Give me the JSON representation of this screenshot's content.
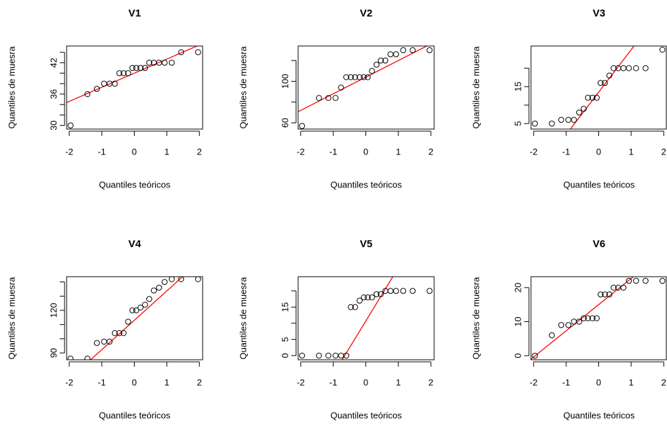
{
  "chart_data": [
    {
      "type": "qq",
      "title": "V1",
      "xlabel": "Quantiles teóricos",
      "ylabel": "Quantiles de muesra",
      "x": [
        -1.96,
        -1.44,
        -1.15,
        -0.93,
        -0.76,
        -0.6,
        -0.46,
        -0.33,
        -0.19,
        -0.06,
        0.06,
        0.19,
        0.33,
        0.46,
        0.6,
        0.76,
        0.93,
        1.15,
        1.44,
        1.96
      ],
      "values": [
        30,
        36,
        37,
        38,
        38,
        38,
        40,
        40,
        40,
        41,
        41,
        41,
        41,
        42,
        42,
        42,
        42,
        42,
        44,
        44
      ],
      "qqline": {
        "intercept": 40,
        "slope": 2.7,
        "color": "#ff0000"
      },
      "xlim": [
        -2.08,
        2.1
      ],
      "ylim": [
        29.3,
        45.2
      ],
      "xticks": [
        -2,
        -1,
        0,
        1,
        2
      ],
      "yticks": [
        30,
        36,
        42
      ],
      "yticks_unlabeled": [
        32,
        34,
        38,
        40,
        44
      ]
    },
    {
      "type": "qq",
      "title": "V2",
      "xlabel": "Quantiles teóricos",
      "ylabel": "Quantiles de muesra",
      "x": [
        -1.96,
        -1.44,
        -1.15,
        -0.93,
        -0.76,
        -0.6,
        -0.46,
        -0.33,
        -0.19,
        -0.06,
        0.06,
        0.19,
        0.33,
        0.46,
        0.6,
        0.76,
        0.93,
        1.15,
        1.44,
        1.96
      ],
      "values": [
        57,
        84,
        84,
        84,
        94,
        104,
        104,
        104,
        104,
        104,
        104,
        110,
        116,
        120,
        120,
        126,
        126,
        130,
        130,
        130
      ],
      "qqline": {
        "intercept": 104,
        "slope": 16,
        "color": "#ff0000"
      },
      "xlim": [
        -2.08,
        2.1
      ],
      "ylim": [
        54,
        134
      ],
      "xticks": [
        -2,
        -1,
        0,
        1,
        2
      ],
      "yticks": [
        60,
        100
      ],
      "yticks_unlabeled": [
        80,
        120
      ]
    },
    {
      "type": "qq",
      "title": "V3",
      "xlabel": "Quantiles teóricos",
      "ylabel": "Quantiles de muesra",
      "x": [
        -1.96,
        -1.44,
        -1.15,
        -0.93,
        -0.76,
        -0.6,
        -0.46,
        -0.33,
        -0.19,
        -0.06,
        0.06,
        0.19,
        0.33,
        0.46,
        0.6,
        0.76,
        0.93,
        1.15,
        1.44,
        1.96
      ],
      "values": [
        5,
        5,
        6,
        6,
        6,
        8,
        9,
        12,
        12,
        12,
        16,
        16,
        18,
        20,
        20,
        20,
        20,
        20,
        20,
        25
      ],
      "qqline": {
        "intercept": 13.5,
        "slope": 11.5,
        "color": "#ff0000"
      },
      "xlim": [
        -2.08,
        2.1
      ],
      "ylim": [
        3.5,
        26
      ],
      "xticks": [
        -2,
        -1,
        0,
        1,
        2
      ],
      "yticks": [
        5,
        15
      ],
      "yticks_unlabeled": [
        10,
        20
      ]
    },
    {
      "type": "qq",
      "title": "V4",
      "xlabel": "Quantiles teóricos",
      "ylabel": "Quantiles de muesra",
      "x": [
        -1.96,
        -1.44,
        -1.15,
        -0.93,
        -0.76,
        -0.6,
        -0.46,
        -0.33,
        -0.19,
        -0.06,
        0.06,
        0.19,
        0.33,
        0.46,
        0.6,
        0.76,
        0.93,
        1.15,
        1.44,
        1.96
      ],
      "values": [
        86,
        86,
        97,
        98,
        98,
        104,
        104,
        104,
        112,
        120,
        120,
        122,
        124,
        128,
        134,
        136,
        140,
        142,
        142,
        142
      ],
      "qqline": {
        "intercept": 113,
        "slope": 20.7,
        "color": "#ff0000"
      },
      "xlim": [
        -2.08,
        2.1
      ],
      "ylim": [
        85.2,
        143.7
      ],
      "xticks": [
        -2,
        -1,
        0,
        1,
        2
      ],
      "yticks": [
        90,
        120
      ],
      "yticks_unlabeled": [
        100,
        110,
        130,
        140
      ]
    },
    {
      "type": "qq",
      "title": "V5",
      "xlabel": "Quantiles teóricos",
      "ylabel": "Quantiles de muesra",
      "x": [
        -1.96,
        -1.44,
        -1.15,
        -0.93,
        -0.76,
        -0.6,
        -0.46,
        -0.33,
        -0.19,
        -0.06,
        0.06,
        0.19,
        0.33,
        0.46,
        0.6,
        0.76,
        0.93,
        1.15,
        1.44,
        1.96
      ],
      "values": [
        0,
        0,
        0,
        0,
        0,
        0,
        15,
        15,
        17,
        18,
        18,
        18,
        19,
        19,
        20,
        20,
        20,
        20,
        20,
        20
      ],
      "qqline": {
        "intercept": 10.7,
        "slope": 16.5,
        "color": "#ff0000"
      },
      "xlim": [
        -2.08,
        2.1
      ],
      "ylim": [
        -1.3,
        24.4
      ],
      "xticks": [
        -2,
        -1,
        0,
        1,
        2
      ],
      "yticks": [
        0,
        5,
        15
      ],
      "yticks_unlabeled": [
        10,
        20
      ]
    },
    {
      "type": "qq",
      "title": "V6",
      "xlabel": "Quantiles teóricos",
      "ylabel": "Quantiles de muesra",
      "x": [
        -1.96,
        -1.44,
        -1.15,
        -0.93,
        -0.76,
        -0.6,
        -0.46,
        -0.33,
        -0.19,
        -0.06,
        0.06,
        0.19,
        0.33,
        0.46,
        0.6,
        0.76,
        0.93,
        1.15,
        1.44,
        1.96
      ],
      "values": [
        0,
        6,
        9,
        9,
        10,
        10,
        11,
        11,
        11,
        11,
        18,
        18,
        18,
        20,
        20,
        20,
        22,
        22,
        22,
        22
      ],
      "qqline": {
        "intercept": 15,
        "slope": 7.7,
        "color": "#ff0000"
      },
      "xlim": [
        -2.08,
        2.1
      ],
      "ylim": [
        -1.2,
        23.2
      ],
      "xticks": [
        -2,
        -1,
        0,
        1,
        2
      ],
      "yticks": [
        0,
        10,
        20
      ],
      "yticks_unlabeled": []
    }
  ]
}
